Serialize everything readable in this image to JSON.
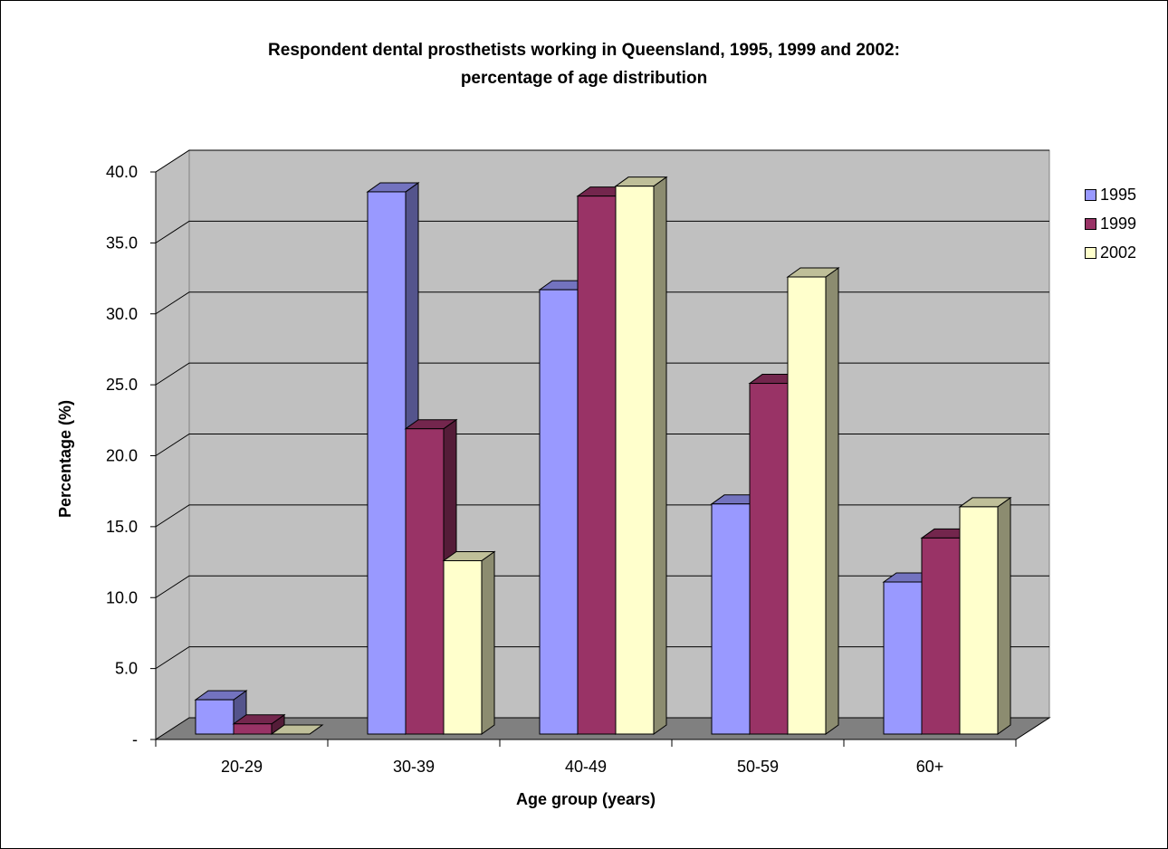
{
  "chart_data": {
    "type": "bar",
    "title": "Respondent dental prosthetists working in Queensland, 1995, 1999 and 2002:",
    "subtitle": "percentage of age distribution",
    "xlabel": "Age group (years)",
    "ylabel": "Percentage (%)",
    "categories": [
      "20-29",
      "30-39",
      "40-49",
      "50-59",
      "60+"
    ],
    "series": [
      {
        "name": "1995",
        "values": [
          2.8,
          38.6,
          31.7,
          16.6,
          11.1
        ],
        "color": "#9999ff"
      },
      {
        "name": "1999",
        "values": [
          1.1,
          21.9,
          38.3,
          25.1,
          14.2
        ],
        "color": "#993366"
      },
      {
        "name": "2002",
        "values": [
          0.0,
          12.6,
          39.0,
          32.6,
          16.4
        ],
        "color": "#ffffcc"
      }
    ],
    "ylim": [
      0,
      40
    ],
    "yticks": [
      "-",
      "5.0",
      "10.0",
      "15.0",
      "20.0",
      "25.0",
      "30.0",
      "35.0",
      "40.0"
    ],
    "grid": true,
    "legend_position": "right"
  }
}
